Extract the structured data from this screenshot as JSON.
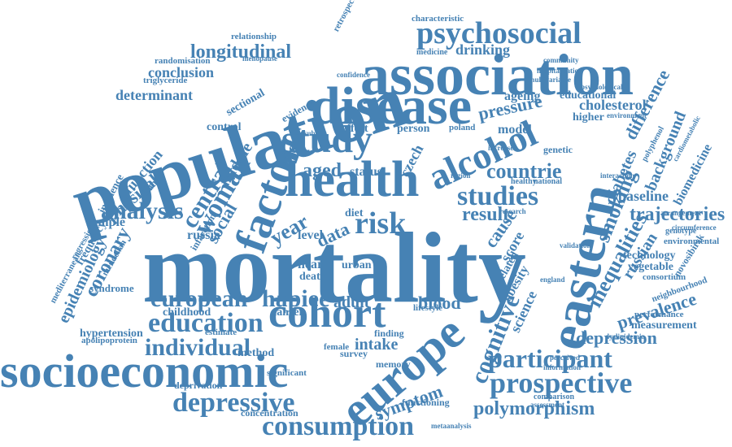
{
  "cloud": {
    "color": "#4682b4",
    "words": [
      "mortality",
      "population",
      "association",
      "disease",
      "socioeconomic",
      "health",
      "factor",
      "europe",
      "eastern",
      "cohort",
      "study",
      "alcohol",
      "psychosocial",
      "consumption",
      "prospective",
      "participant",
      "depressive",
      "education",
      "studies",
      "european",
      "hapiee",
      "individual",
      "risk",
      "woman",
      "central",
      "analysis",
      "cognitive",
      "inequalities",
      "smoking",
      "trajectories",
      "longitudinal",
      "polymorphism",
      "symptom",
      "depression",
      "prevalence",
      "countrie",
      "aged",
      "year",
      "physical",
      "coronary",
      "epidemiology",
      "social",
      "pressure",
      "cholesterol",
      "difference",
      "background",
      "diabetes",
      "biomedicine",
      "baseline",
      "russian",
      "conclusion",
      "determinant",
      "relationship",
      "randomisation",
      "intake",
      "blood",
      "adult",
      "data",
      "result",
      "cause",
      "score",
      "science",
      "technology",
      "vegetable",
      "measurement",
      "ageing",
      "educational",
      "drinking",
      "sectional",
      "function",
      "sample",
      "russia",
      "hypertension",
      "childhood",
      "cancer",
      "heart",
      "death",
      "urban",
      "level",
      "status",
      "older",
      "middle",
      "czech",
      "diet",
      "obesity",
      "related",
      "novosibirsk",
      "environmental",
      "consortium",
      "neighbourhood",
      "performance",
      "genetic",
      "model",
      "control",
      "effect",
      "person",
      "poland",
      "higher",
      "finding",
      "method",
      "memory",
      "survey",
      "concentration",
      "functioning",
      "deprivation",
      "estimate",
      "significant",
      "apolipoprotein",
      "female",
      "lifestyle",
      "triglyceride",
      "menopause",
      "retrospective",
      "characteristic",
      "medicine",
      "hospitalisation",
      "multivariable",
      "evidence",
      "confidence",
      "incidence",
      "frequency",
      "mendelian",
      "regression",
      "mediterranean",
      "syndrome",
      "change",
      "polyphenol",
      "genotype",
      "validation",
      "circumference",
      "arrangement",
      "dyslipidemia",
      "england",
      "comparison",
      "assessment",
      "metaanalysis",
      "information",
      "perceived",
      "cardiometabolic",
      "environment",
      "psychological",
      "community",
      "healthy",
      "national",
      "research",
      "region",
      "increase",
      "infarction",
      "interaction",
      "subject"
    ]
  }
}
